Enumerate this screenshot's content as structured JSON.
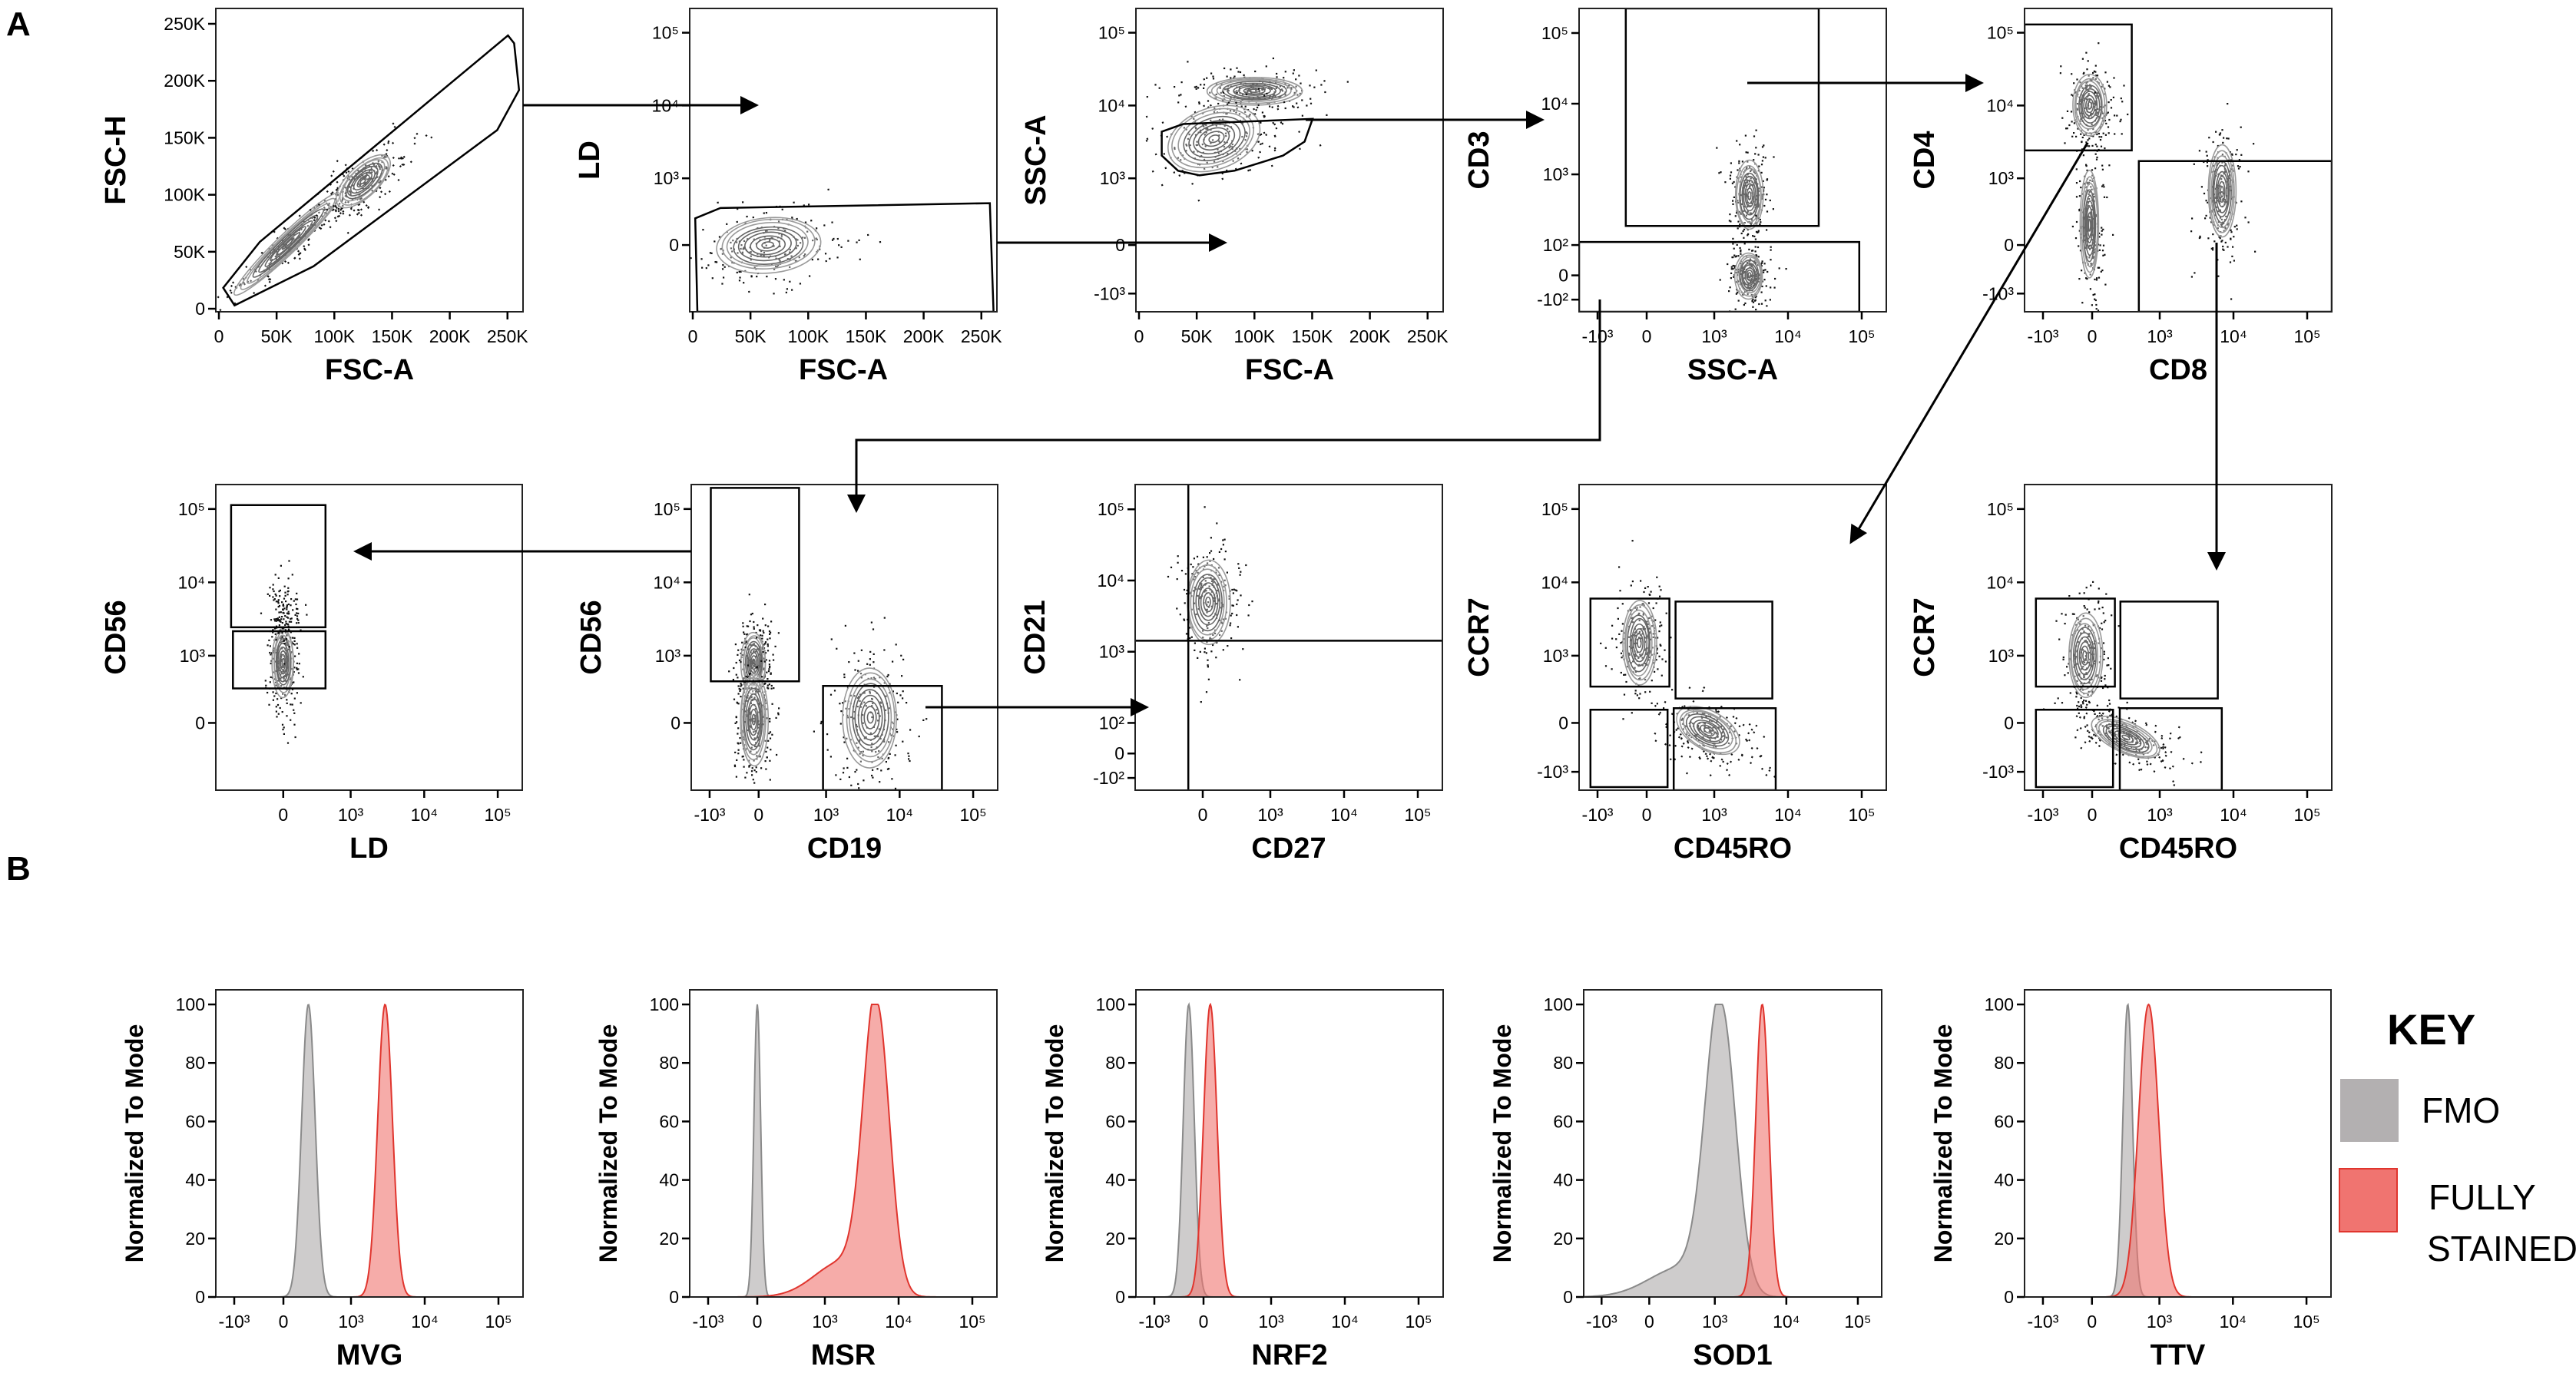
{
  "figure": {
    "panel_a_label": "A",
    "panel_b_label": "B"
  },
  "key": {
    "title": "KEY",
    "fmo_label": "FMO",
    "stained_label_line1": "FULLY",
    "stained_label_line2": "STAINED",
    "fmo_color": "#b3b0b1",
    "stained_color": "#f07470",
    "stained_border_color": "#e0352e"
  },
  "chart_data": [
    {
      "type": "scatter",
      "row": "A",
      "x_label": "FSC-A",
      "y_label": "FSC-H",
      "x_scale": "linear",
      "y_scale": "linear",
      "x_ticks": [
        {
          "label": "0",
          "value": 0
        },
        {
          "label": "50K",
          "value": 50000
        },
        {
          "label": "100K",
          "value": 100000
        },
        {
          "label": "150K",
          "value": 150000
        },
        {
          "label": "200K",
          "value": 200000
        },
        {
          "label": "250K",
          "value": 250000
        }
      ],
      "y_ticks": [
        {
          "label": "0",
          "value": 0
        },
        {
          "label": "50K",
          "value": 50000
        },
        {
          "label": "100K",
          "value": 100000
        },
        {
          "label": "150K",
          "value": 150000
        },
        {
          "label": "200K",
          "value": 200000
        },
        {
          "label": "250K",
          "value": 250000
        }
      ],
      "populations": [
        {
          "x": 60000,
          "y": 57000
        },
        {
          "x": 125000,
          "y": 112000
        }
      ]
    },
    {
      "type": "scatter",
      "row": "A",
      "x_label": "FSC-A",
      "y_label": "LD",
      "x_scale": "linear",
      "y_scale": "biex",
      "x_ticks": [
        {
          "label": "0",
          "value": 0
        },
        {
          "label": "50K",
          "value": 50000
        },
        {
          "label": "100K",
          "value": 100000
        },
        {
          "label": "150K",
          "value": 150000
        },
        {
          "label": "200K",
          "value": 200000
        },
        {
          "label": "250K",
          "value": 250000
        }
      ],
      "y_ticks": [
        {
          "label": "0",
          "value": 0
        },
        {
          "label": "10³",
          "value": 1000
        },
        {
          "label": "10⁴",
          "value": 10000
        },
        {
          "label": "10⁵",
          "value": 100000
        }
      ],
      "populations": [
        {
          "x": 65000,
          "y": 0
        }
      ]
    },
    {
      "type": "scatter",
      "row": "A",
      "x_label": "FSC-A",
      "y_label": "SSC-A",
      "x_scale": "linear",
      "y_scale": "biex",
      "x_ticks": [
        {
          "label": "0",
          "value": 0
        },
        {
          "label": "50K",
          "value": 50000
        },
        {
          "label": "100K",
          "value": 100000
        },
        {
          "label": "150K",
          "value": 150000
        },
        {
          "label": "200K",
          "value": 200000
        },
        {
          "label": "250K",
          "value": 250000
        }
      ],
      "y_ticks": [
        {
          "label": "-10³",
          "value": -1000
        },
        {
          "label": "0",
          "value": 0
        },
        {
          "label": "10³",
          "value": 1000
        },
        {
          "label": "10⁴",
          "value": 10000
        },
        {
          "label": "10⁵",
          "value": 100000
        }
      ],
      "populations": [
        {
          "x": 100000,
          "y": 16000
        },
        {
          "x": 65000,
          "y": 3500
        }
      ]
    },
    {
      "type": "scatter",
      "row": "A",
      "x_label": "SSC-A",
      "y_label": "CD3",
      "x_scale": "biex",
      "y_scale": "biex-narrow",
      "x_ticks": [
        {
          "label": "-10³",
          "value": -1000
        },
        {
          "label": "0",
          "value": 0
        },
        {
          "label": "10³",
          "value": 1000
        },
        {
          "label": "10⁴",
          "value": 10000
        },
        {
          "label": "10⁵",
          "value": 100000
        }
      ],
      "y_ticks": [
        {
          "label": "-10²",
          "value": -100
        },
        {
          "label": "0",
          "value": 0
        },
        {
          "label": "10²",
          "value": 100
        },
        {
          "label": "10³",
          "value": 1000
        },
        {
          "label": "10⁴",
          "value": 10000
        },
        {
          "label": "10⁵",
          "value": 100000
        }
      ],
      "populations": [
        {
          "x": 3000,
          "y": 500
        },
        {
          "x": 3000,
          "y": 0
        }
      ]
    },
    {
      "type": "scatter",
      "row": "A",
      "x_label": "CD8",
      "y_label": "CD4",
      "x_scale": "biex",
      "y_scale": "biex",
      "x_ticks": [
        {
          "label": "-10³",
          "value": -1000
        },
        {
          "label": "0",
          "value": 0
        },
        {
          "label": "10³",
          "value": 1000
        },
        {
          "label": "10⁴",
          "value": 10000
        },
        {
          "label": "10⁵",
          "value": 100000
        }
      ],
      "y_ticks": [
        {
          "label": "-10³",
          "value": -1000
        },
        {
          "label": "0",
          "value": 0
        },
        {
          "label": "10³",
          "value": 1000
        },
        {
          "label": "10⁴",
          "value": 10000
        },
        {
          "label": "10⁵",
          "value": 100000
        }
      ],
      "populations": [
        {
          "x": -50,
          "y": 10000
        },
        {
          "x": -50,
          "y": 300
        },
        {
          "x": 7000,
          "y": 800
        }
      ]
    },
    {
      "type": "scatter",
      "row": "A",
      "x_label": "LD",
      "y_label": "CD56",
      "x_scale": "biex",
      "y_scale": "biex",
      "x_ticks": [
        {
          "label": "0",
          "value": 0
        },
        {
          "label": "10³",
          "value": 1000
        },
        {
          "label": "10⁴",
          "value": 10000
        },
        {
          "label": "10⁵",
          "value": 100000
        }
      ],
      "y_ticks": [
        {
          "label": "0",
          "value": 0
        },
        {
          "label": "10³",
          "value": 1000
        },
        {
          "label": "10⁴",
          "value": 10000
        },
        {
          "label": "10⁵",
          "value": 100000
        }
      ],
      "populations": [
        {
          "x": 0,
          "y": 900
        },
        {
          "x": 0,
          "y": 4000
        }
      ]
    },
    {
      "type": "scatter",
      "row": "A",
      "x_label": "CD19",
      "y_label": "CD56",
      "x_scale": "biex",
      "y_scale": "biex",
      "x_ticks": [
        {
          "label": "-10³",
          "value": -1000
        },
        {
          "label": "0",
          "value": 0
        },
        {
          "label": "10³",
          "value": 1000
        },
        {
          "label": "10⁴",
          "value": 10000
        },
        {
          "label": "10⁵",
          "value": 100000
        }
      ],
      "y_ticks": [
        {
          "label": "0",
          "value": 0
        },
        {
          "label": "10³",
          "value": 1000
        },
        {
          "label": "10⁴",
          "value": 10000
        },
        {
          "label": "10⁵",
          "value": 100000
        }
      ],
      "populations": [
        {
          "x": -100,
          "y": 900
        },
        {
          "x": -100,
          "y": 50
        },
        {
          "x": 4000,
          "y": 80
        }
      ]
    },
    {
      "type": "scatter",
      "row": "A",
      "x_label": "CD27",
      "y_label": "CD21",
      "x_scale": "biex",
      "y_scale": "biex-narrow",
      "x_ticks": [
        {
          "label": "0",
          "value": 0
        },
        {
          "label": "10³",
          "value": 1000
        },
        {
          "label": "10⁴",
          "value": 10000
        },
        {
          "label": "10⁵",
          "value": 100000
        }
      ],
      "y_ticks": [
        {
          "label": "-10²",
          "value": -100
        },
        {
          "label": "0",
          "value": 0
        },
        {
          "label": "10²",
          "value": 100
        },
        {
          "label": "10³",
          "value": 1000
        },
        {
          "label": "10⁴",
          "value": 10000
        },
        {
          "label": "10⁵",
          "value": 100000
        }
      ],
      "populations": [
        {
          "x": 80,
          "y": 5000
        }
      ]
    },
    {
      "type": "scatter",
      "row": "A",
      "x_label": "CD45RO",
      "y_label": "CCR7",
      "x_scale": "biex",
      "y_scale": "biex",
      "x_ticks": [
        {
          "label": "-10³",
          "value": -1000
        },
        {
          "label": "0",
          "value": 0
        },
        {
          "label": "10³",
          "value": 1000
        },
        {
          "label": "10⁴",
          "value": 10000
        },
        {
          "label": "10⁵",
          "value": 100000
        }
      ],
      "y_ticks": [
        {
          "label": "-10³",
          "value": -1000
        },
        {
          "label": "0",
          "value": 0
        },
        {
          "label": "10³",
          "value": 1000
        },
        {
          "label": "10⁴",
          "value": 10000
        },
        {
          "label": "10⁵",
          "value": 100000
        }
      ],
      "populations": [
        {
          "x": -150,
          "y": 1500
        },
        {
          "x": 900,
          "y": -150
        }
      ]
    },
    {
      "type": "scatter",
      "row": "A",
      "x_label": "CD45RO",
      "y_label": "CCR7",
      "x_scale": "biex",
      "y_scale": "biex",
      "x_ticks": [
        {
          "label": "-10³",
          "value": -1000
        },
        {
          "label": "0",
          "value": 0
        },
        {
          "label": "10³",
          "value": 1000
        },
        {
          "label": "10⁴",
          "value": 10000
        },
        {
          "label": "10⁵",
          "value": 100000
        }
      ],
      "y_ticks": [
        {
          "label": "-10³",
          "value": -1000
        },
        {
          "label": "0",
          "value": 0
        },
        {
          "label": "10³",
          "value": 1000
        },
        {
          "label": "10⁴",
          "value": 10000
        },
        {
          "label": "10⁵",
          "value": 100000
        }
      ],
      "populations": [
        {
          "x": -150,
          "y": 1000
        },
        {
          "x": 500,
          "y": -300
        }
      ]
    },
    {
      "type": "area",
      "row": "B",
      "x_label": "MVG",
      "y_label": "Normalized To Mode",
      "x_scale": "biex",
      "ylim": [
        0,
        100
      ],
      "series": [
        {
          "name": "FMO",
          "peak_x": 370
        },
        {
          "name": "FULLY STAINED",
          "peak_x": 2900
        }
      ]
    },
    {
      "type": "area",
      "row": "B",
      "x_label": "MSR",
      "y_label": "Normalized To Mode",
      "x_scale": "biex",
      "ylim": [
        0,
        100
      ],
      "series": [
        {
          "name": "FMO",
          "peak_x": 0
        },
        {
          "name": "FULLY STAINED",
          "peak_x": 5000
        }
      ]
    },
    {
      "type": "area",
      "row": "B",
      "x_label": "NRF2",
      "y_label": "Normalized To Mode",
      "x_scale": "biex",
      "ylim": [
        0,
        100
      ],
      "series": [
        {
          "name": "FMO",
          "peak_x": -300
        },
        {
          "name": "FULLY STAINED",
          "peak_x": 100
        }
      ]
    },
    {
      "type": "area",
      "row": "B",
      "x_label": "SOD1",
      "y_label": "Normalized To Mode",
      "x_scale": "biex",
      "ylim": [
        0,
        100
      ],
      "series": [
        {
          "name": "FMO",
          "peak_x": 1200
        },
        {
          "name": "FULLY STAINED",
          "peak_x": 4600
        }
      ]
    },
    {
      "type": "area",
      "row": "B",
      "x_label": "TTV",
      "y_label": "Normalized To Mode",
      "x_scale": "biex",
      "ylim": [
        0,
        100
      ],
      "series": [
        {
          "name": "FMO",
          "peak_x": 530
        },
        {
          "name": "FULLY STAINED",
          "peak_x": 840
        }
      ]
    }
  ],
  "histogram_axis": {
    "x_ticks": [
      {
        "label": "-10³",
        "value": -1000
      },
      {
        "label": "0",
        "value": 0
      },
      {
        "label": "10³",
        "value": 1000
      },
      {
        "label": "10⁴",
        "value": 10000
      },
      {
        "label": "10⁵",
        "value": 100000
      }
    ],
    "y_ticks": [
      {
        "label": "0",
        "value": 0
      },
      {
        "label": "20",
        "value": 20
      },
      {
        "label": "40",
        "value": 40
      },
      {
        "label": "60",
        "value": 60
      },
      {
        "label": "80",
        "value": 80
      },
      {
        "label": "100",
        "value": 100
      }
    ]
  }
}
